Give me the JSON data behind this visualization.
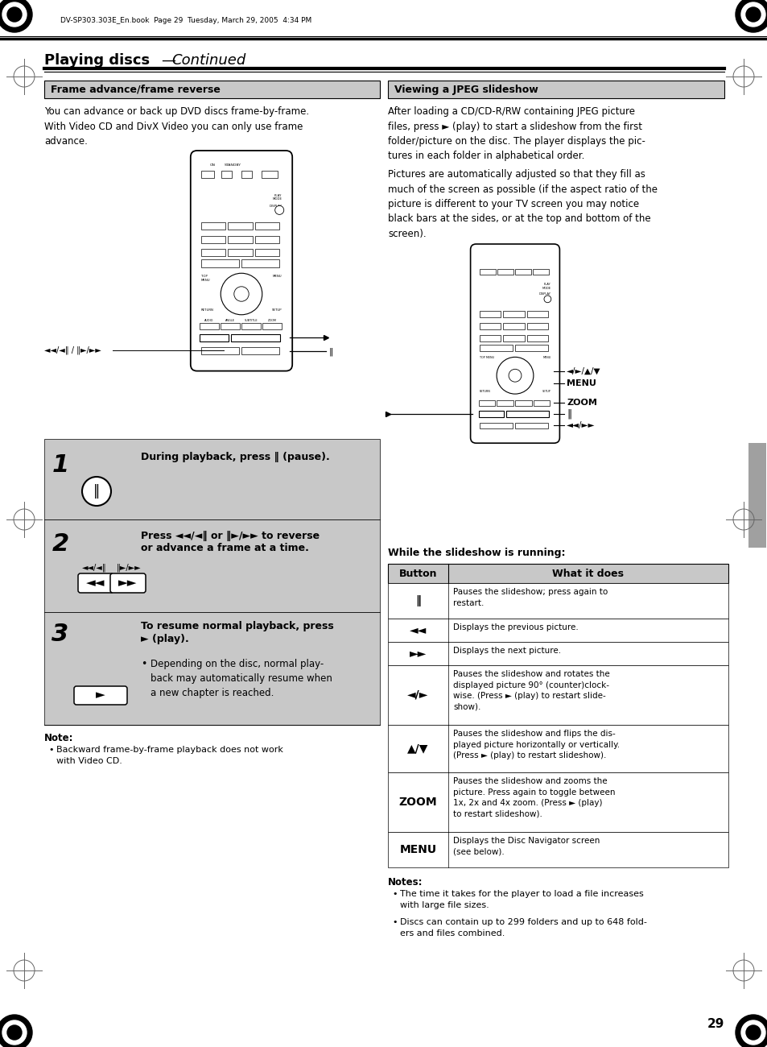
{
  "page_bg": "#ffffff",
  "header_text": "DV-SP303.303E_En.book  Page 29  Tuesday, March 29, 2005  4:34 PM",
  "title_bold": "Playing discs",
  "title_dash": "—",
  "title_italic": "Continued",
  "section1_title": "Frame advance/frame reverse",
  "section2_title": "Viewing a JPEG slideshow",
  "section1_body": "You can advance or back up DVD discs frame-by-frame.\nWith Video CD and DivX Video you can only use frame\nadvance.",
  "section2_body1": "After loading a CD/CD-R/RW containing JPEG picture\nfiles, press ► (play) to start a slideshow from the first\nfolder/picture on the disc. The player displays the pic-\ntures in each folder in alphabetical order.",
  "section2_body2": "Pictures are automatically adjusted so that they fill as\nmuch of the screen as possible (if the aspect ratio of the\npicture is different to your TV screen you may notice\nblack bars at the sides, or at the top and bottom of the\nscreen).",
  "step1_num": "1",
  "step1_text": "During playback, press ‖ (pause).",
  "step2_num": "2",
  "step2_text_line1": "Press ◄◄/◄‖ or ‖►/►► to reverse",
  "step2_text_line2": "or advance a frame at a time.",
  "step2_label_left": "◄◄/◄‖",
  "step2_label_right": "‖►/►►",
  "step3_num": "3",
  "step3_text_line1": "To resume normal playback, press",
  "step3_text_line2": "► (play).",
  "step3_bullet": "Depending on the disc, normal play-\nback may automatically resume when\na new chapter is reached.",
  "note_title": "Note:",
  "note_bullet": "Backward frame-by-frame playback does not work\nwith Video CD.",
  "slideshow_subtitle": "While the slideshow is running:",
  "table_col1_header": "Button",
  "table_col2_header": "What it does",
  "table_rows": [
    {
      "button": "‖",
      "text": "Pauses the slideshow; press again to\nrestart.",
      "bold_btn": true
    },
    {
      "button": "◄◄",
      "text": "Displays the previous picture.",
      "bold_btn": true
    },
    {
      "button": "►►",
      "text": "Displays the next picture.",
      "bold_btn": true
    },
    {
      "button": "◄/►",
      "text": "Pauses the slideshow and rotates the\ndisplayed picture 90° (counter)clock-\nwise. (Press ► (play) to restart slide-\nshow).",
      "bold_btn": true
    },
    {
      "button": "▲/▼",
      "text": "Pauses the slideshow and flips the dis-\nplayed picture horizontally or vertically.\n(Press ► (play) to restart slideshow).",
      "bold_btn": true
    },
    {
      "button": "ZOOM",
      "text": "Pauses the slideshow and zooms the\npicture. Press again to toggle between\n1x, 2x and 4x zoom. (Press ► (play)\nto restart slideshow).",
      "bold_btn": true
    },
    {
      "button": "MENU",
      "text": "Displays the Disc Navigator screen\n(see below).",
      "bold_btn": true
    }
  ],
  "notes2_title": "Notes:",
  "notes2_bullets": [
    "The time it takes for the player to load a file increases\nwith large file sizes.",
    "Discs can contain up to 648 fold-\ners and files combined."
  ],
  "page_num": "29",
  "gray_light": "#c8c8c8",
  "gray_sidebar": "#b0b0b0",
  "black": "#000000",
  "white": "#ffffff",
  "lmargin": 55,
  "mid": 477,
  "rmargin": 900
}
